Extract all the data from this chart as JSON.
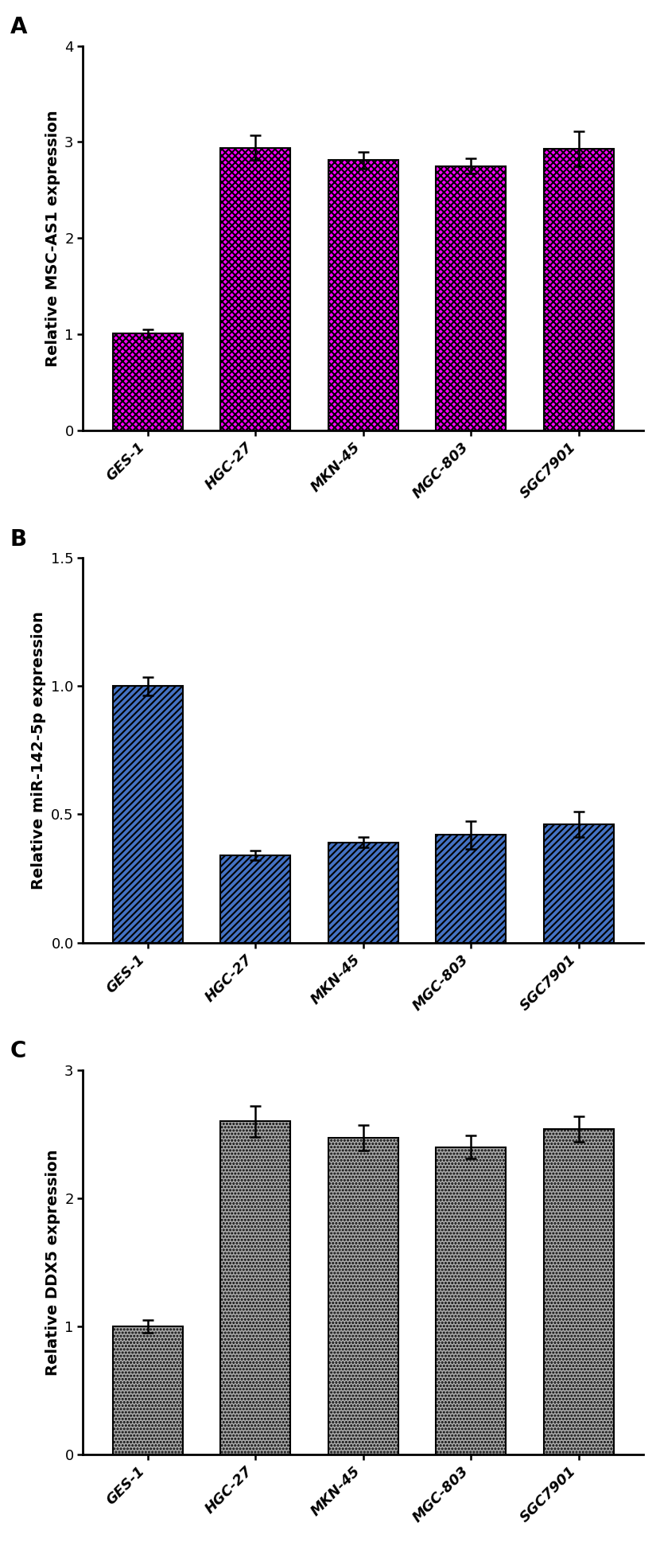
{
  "panel_A": {
    "categories": [
      "GES-1",
      "HGC-27",
      "MKN-45",
      "MGC-803",
      "SGC7901"
    ],
    "values": [
      1.01,
      2.94,
      2.81,
      2.75,
      2.93
    ],
    "errors": [
      0.04,
      0.13,
      0.09,
      0.08,
      0.18
    ],
    "ylabel": "Relative MSC-AS1 expression",
    "ylim": [
      0,
      4
    ],
    "yticks": [
      0,
      1,
      2,
      3,
      4
    ],
    "bar_facecolor": "#FF00FF",
    "bar_edgecolor": "#000000",
    "hatch": "xxxx",
    "hatch_color": "#000000",
    "label": "A"
  },
  "panel_B": {
    "categories": [
      "GES-1",
      "HGC-27",
      "MKN-45",
      "MGC-803",
      "SGC7901"
    ],
    "values": [
      1.0,
      0.34,
      0.39,
      0.42,
      0.46
    ],
    "errors": [
      0.035,
      0.02,
      0.02,
      0.055,
      0.05
    ],
    "ylabel": "Relative miR-142-5p expression",
    "ylim": [
      0,
      1.5
    ],
    "yticks": [
      0.0,
      0.5,
      1.0,
      1.5
    ],
    "bar_facecolor": "#4472C4",
    "bar_edgecolor": "#000000",
    "hatch": "////",
    "hatch_color": "#000000",
    "label": "B"
  },
  "panel_C": {
    "categories": [
      "GES-1",
      "HGC-27",
      "MKN-45",
      "MGC-803",
      "SGC7901"
    ],
    "values": [
      1.0,
      2.6,
      2.47,
      2.4,
      2.54
    ],
    "errors": [
      0.05,
      0.12,
      0.1,
      0.09,
      0.1
    ],
    "ylabel": "Relative DDX5 expression",
    "ylim": [
      0,
      3
    ],
    "yticks": [
      0,
      1,
      2,
      3
    ],
    "bar_facecolor": "#AAAAAA",
    "bar_edgecolor": "#000000",
    "hatch": "....",
    "hatch_color": "#000000",
    "label": "C"
  },
  "label_fontsize": 20,
  "tick_fontsize": 13,
  "ylabel_fontsize": 14,
  "xlabel_fontsize": 13,
  "bar_width": 0.65,
  "error_color": "#000000",
  "background_color": "#FFFFFF",
  "spine_linewidth": 2.0,
  "figure_width": 8.3,
  "figure_height": 19.38,
  "dpi": 100
}
